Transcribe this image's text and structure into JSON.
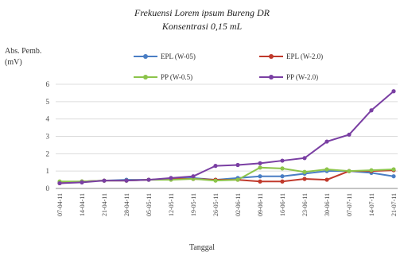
{
  "chart_data": {
    "type": "line",
    "title_line1": "Frekuensi Lorem ipsum Bureng DR",
    "title_line2": "Konsentrasi 0,15 mL",
    "ylabel_line1": "Abs. Pemb.",
    "ylabel_line2": "(mV)",
    "xlabel": "Tanggal",
    "ylim": [
      0,
      6
    ],
    "yticks": [
      "0",
      "1",
      "2",
      "3",
      "4",
      "5",
      "6"
    ],
    "categories": [
      "07-04-11",
      "14-04-11",
      "21-04-11",
      "28-04-11",
      "05-05-11",
      "12-05-11",
      "19-05-11",
      "26-05-11",
      "02-06-11",
      "09-06-11",
      "16-06-11",
      "23-06-11",
      "30-06-11",
      "07-07-11",
      "14-07-11",
      "21-07-11"
    ],
    "series": [
      {
        "name": "EPL (W-05)",
        "color": "#4a7ec4",
        "values": [
          0.35,
          0.4,
          0.45,
          0.5,
          0.5,
          0.55,
          0.6,
          0.5,
          0.6,
          0.7,
          0.7,
          0.85,
          1.0,
          1.0,
          0.9,
          0.7
        ]
      },
      {
        "name": "EPL (W-2.0)",
        "color": "#c0392b",
        "values": [
          0.3,
          0.4,
          0.45,
          0.45,
          0.5,
          0.55,
          0.55,
          0.5,
          0.5,
          0.4,
          0.4,
          0.55,
          0.5,
          1.0,
          1.0,
          1.05
        ]
      },
      {
        "name": "PP (W-0.5)",
        "color": "#8cc44a",
        "values": [
          0.4,
          0.4,
          0.45,
          0.45,
          0.5,
          0.5,
          0.55,
          0.45,
          0.5,
          1.2,
          1.15,
          0.95,
          1.1,
          1.0,
          1.05,
          1.1
        ]
      },
      {
        "name": "PP (W-2.0)",
        "color": "#7a3fa3",
        "values": [
          0.3,
          0.35,
          0.45,
          0.45,
          0.5,
          0.6,
          0.7,
          1.3,
          1.35,
          1.45,
          1.6,
          1.75,
          2.7,
          3.1,
          4.5,
          5.6
        ]
      }
    ]
  }
}
